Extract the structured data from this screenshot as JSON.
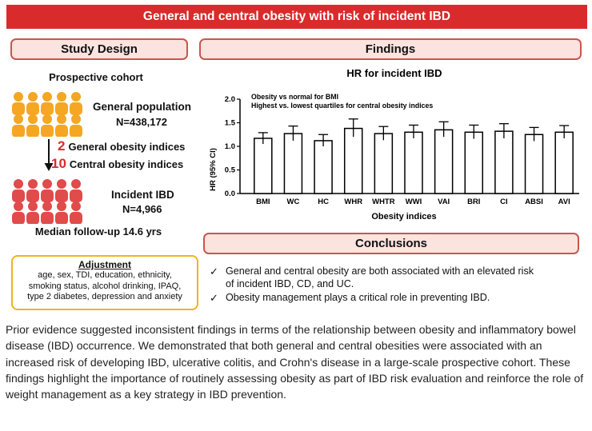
{
  "title": "General and central obesity with risk of incident IBD",
  "study_design": {
    "header": "Study Design",
    "cohort": "Prospective cohort",
    "general_population_label": "General population",
    "general_population_n": "N=438,172",
    "general_indices_num": "2",
    "general_indices_label": "General obesity indices",
    "central_indices_num": "10",
    "central_indices_label": "Central obesity indices",
    "incident_label": "Incident IBD",
    "incident_n": "N=4,966",
    "followup": "Median follow-up 14.6 yrs",
    "adjustment_title": "Adjustment",
    "adjustment_lines": [
      "age, sex, TDI, education, ethnicity,",
      "smoking status, alcohol drinking, IPAQ,",
      "type 2 diabetes, depression and anxiety"
    ],
    "colors": {
      "general_population": "#f5a623",
      "incident_ibd": "#e04b4b"
    }
  },
  "findings": {
    "header": "Findings"
  },
  "chart_data": {
    "type": "bar",
    "title": "HR for incident IBD",
    "annotations": [
      "Obesity vs normal for BMI",
      "Highest vs. lowest quartiles for central obesity indices"
    ],
    "xlabel": "Obesity indices",
    "ylabel": "HR (95% CI)",
    "ylim": [
      0,
      2.0
    ],
    "yticks": [
      "0.0",
      "0.5",
      "1.0",
      "1.5",
      "2.0"
    ],
    "categories": [
      "BMI",
      "WC",
      "HC",
      "WHR",
      "WHTR",
      "WWI",
      "VAI",
      "BRI",
      "CI",
      "ABSI",
      "AVI"
    ],
    "values": [
      1.17,
      1.27,
      1.12,
      1.38,
      1.27,
      1.3,
      1.35,
      1.3,
      1.32,
      1.25,
      1.3
    ],
    "ci_lower": [
      1.05,
      1.12,
      1.0,
      1.2,
      1.13,
      1.17,
      1.2,
      1.16,
      1.17,
      1.11,
      1.17
    ],
    "ci_upper": [
      1.29,
      1.43,
      1.25,
      1.58,
      1.42,
      1.45,
      1.52,
      1.45,
      1.48,
      1.4,
      1.44
    ],
    "bar_fill": "#ffffff",
    "bar_stroke": "#000000"
  },
  "conclusions": {
    "header": "Conclusions",
    "items": [
      {
        "line1": "General and central obesity are both associated with an elevated risk",
        "line2": "of incident IBD, CD, and UC."
      },
      {
        "line1": "Obesity management plays a critical role in preventing IBD.",
        "line2": ""
      }
    ],
    "check_glyph": "✓"
  },
  "abstract": "Prior evidence suggested inconsistent findings in terms of the relationship between obesity and inflammatory bowel disease (IBD) occurrence. We demonstrated that both general and central obesities were associated with an increased risk of developing IBD, ulcerative colitis, and Crohn's disease in a large-scale prospective cohort. These findings highlight the importance of routinely assessing obesity as part of IBD risk evaluation and reinforce the role of weight management as a key strategy in IBD prevention."
}
